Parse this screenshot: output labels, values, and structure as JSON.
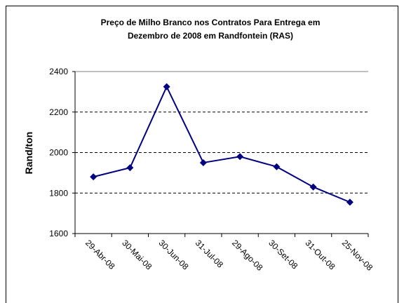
{
  "chart_data": {
    "type": "line",
    "title": "Preço de Milho Branco nos Contratos Para Entrega em Dezembro de 2008 em Randfontein (RAS)",
    "title_lines": [
      "Preço de Milho Branco nos Contratos Para Entrega em",
      "Dezembro de 2008 em Randfontein (RAS)"
    ],
    "y_label": "Rand/ton",
    "categories": [
      "29-Abr-08",
      "30-Mai-08",
      "30-Jun-08",
      "31-Jul-08",
      "29-Ago-08",
      "30-Set-08",
      "31-Out-08",
      "25-Nov-08"
    ],
    "values": [
      1880,
      1925,
      2325,
      1950,
      1980,
      1930,
      1830,
      1755
    ],
    "color": "#000080",
    "ylim": [
      1600,
      2400
    ],
    "yticks": [
      1600,
      1800,
      2000,
      2200,
      2400
    ],
    "grid": true
  }
}
